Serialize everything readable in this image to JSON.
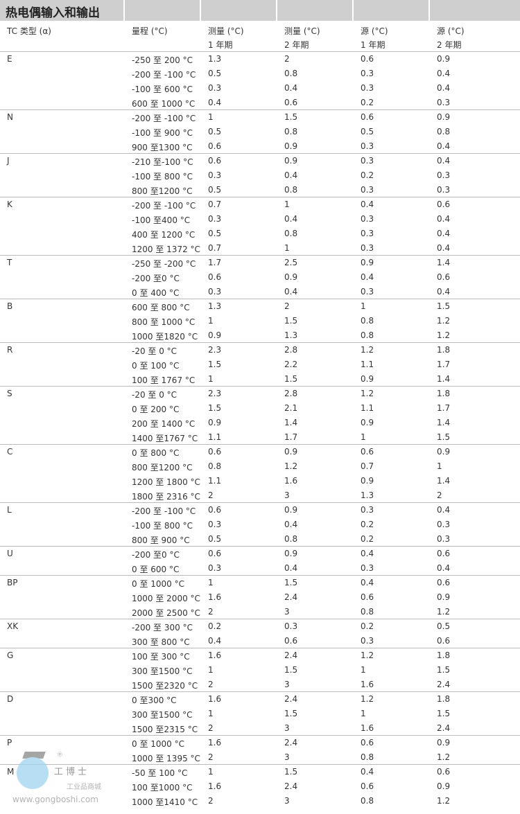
{
  "title": "热电偶输入和输出",
  "headers": [
    {
      "l1": "TC 类型 (α)",
      "l2": ""
    },
    {
      "l1": "量程 (°C)",
      "l2": ""
    },
    {
      "l1": "测量 (°C)",
      "l2": "1 年期"
    },
    {
      "l1": "测量 (°C)",
      "l2": "2 年期"
    },
    {
      "l1": "源 (°C)",
      "l2": "1 年期"
    },
    {
      "l1": "源 (°C)",
      "l2": "2 年期"
    }
  ],
  "groups": [
    {
      "type": "E",
      "rows": [
        [
          "-250 至 200 °C",
          "1.3",
          "2",
          "0.6",
          "0.9"
        ],
        [
          "-200 至 -100 °C",
          "0.5",
          "0.8",
          "0.3",
          "0.4"
        ],
        [
          "-100 至 600 °C",
          "0.3",
          "0.4",
          "0.3",
          "0.4"
        ],
        [
          "600 至 1000 °C",
          "0.4",
          "0.6",
          "0.2",
          "0.3"
        ]
      ]
    },
    {
      "type": "N",
      "rows": [
        [
          "-200 至 -100 °C",
          "1",
          "1.5",
          "0.6",
          "0.9"
        ],
        [
          "-100 至 900 °C",
          "0.5",
          "0.8",
          "0.5",
          "0.8"
        ],
        [
          "900 至1300 °C",
          "0.6",
          "0.9",
          "0.3",
          "0.4"
        ]
      ]
    },
    {
      "type": "J",
      "rows": [
        [
          "-210 至-100 °C",
          "0.6",
          "0.9",
          "0.3",
          "0.4"
        ],
        [
          "-100 至 800 °C",
          "0.3",
          "0.4",
          "0.2",
          "0.3"
        ],
        [
          "800 至1200 °C",
          "0.5",
          "0.8",
          "0.3",
          "0.3"
        ]
      ]
    },
    {
      "type": "K",
      "rows": [
        [
          "-200 至 -100 °C",
          "0.7",
          "1",
          "0.4",
          "0.6"
        ],
        [
          "-100 至400 °C",
          "0.3",
          "0.4",
          "0.3",
          "0.4"
        ],
        [
          "400 至 1200 °C",
          "0.5",
          "0.8",
          "0.3",
          "0.4"
        ],
        [
          "1200 至 1372 °C",
          "0.7",
          "1",
          "0.3",
          "0.4"
        ]
      ]
    },
    {
      "type": "T",
      "rows": [
        [
          "-250 至 -200 °C",
          "1.7",
          "2.5",
          "0.9",
          "1.4"
        ],
        [
          "-200 至0 °C",
          "0.6",
          "0.9",
          "0.4",
          "0.6"
        ],
        [
          "0 至 400 °C",
          "0.3",
          "0.4",
          "0.3",
          "0.4"
        ]
      ]
    },
    {
      "type": "B",
      "rows": [
        [
          "600 至 800 °C",
          "1.3",
          "2",
          "1",
          "1.5"
        ],
        [
          "800 至 1000 °C",
          "1",
          "1.5",
          "0.8",
          "1.2"
        ],
        [
          "1000 至1820 °C",
          "0.9",
          "1.3",
          "0.8",
          "1.2"
        ]
      ]
    },
    {
      "type": "R",
      "rows": [
        [
          "-20 至 0 °C",
          "2.3",
          "2.8",
          "1.2",
          "1.8"
        ],
        [
          "0 至 100 °C",
          "1.5",
          "2.2",
          "1.1",
          "1.7"
        ],
        [
          "100 至 1767 °C",
          "1",
          "1.5",
          "0.9",
          "1.4"
        ]
      ]
    },
    {
      "type": "S",
      "rows": [
        [
          "-20 至 0 °C",
          "2.3",
          "2.8",
          "1.2",
          "1.8"
        ],
        [
          "0 至 200 °C",
          "1.5",
          "2.1",
          "1.1",
          "1.7"
        ],
        [
          "200 至 1400 °C",
          "0.9",
          "1.4",
          "0.9",
          "1.4"
        ],
        [
          "1400 至1767 °C",
          "1.1",
          "1.7",
          "1",
          "1.5"
        ]
      ]
    },
    {
      "type": "C",
      "rows": [
        [
          "0 至 800 °C",
          "0.6",
          "0.9",
          "0.6",
          "0.9"
        ],
        [
          "800 至1200 °C",
          "0.8",
          "1.2",
          "0.7",
          "1"
        ],
        [
          "1200 至 1800 °C",
          "1.1",
          "1.6",
          "0.9",
          "1.4"
        ],
        [
          "1800 至 2316 °C",
          "2",
          "3",
          "1.3",
          "2"
        ]
      ]
    },
    {
      "type": "L",
      "rows": [
        [
          "-200 至 -100 °C",
          "0.6",
          "0.9",
          "0.3",
          "0.4"
        ],
        [
          "-100 至 800 °C",
          "0.3",
          "0.4",
          "0.2",
          "0.3"
        ],
        [
          "800 至 900 °C",
          "0.5",
          "0.8",
          "0.2",
          "0.3"
        ]
      ]
    },
    {
      "type": "U",
      "rows": [
        [
          "-200 至0 °C",
          "0.6",
          "0.9",
          "0.4",
          "0.6"
        ],
        [
          "0 至 600 °C",
          "0.3",
          "0.4",
          "0.3",
          "0.4"
        ]
      ]
    },
    {
      "type": "BP",
      "rows": [
        [
          "0 至 1000 °C",
          "1",
          "1.5",
          "0.4",
          "0.6"
        ],
        [
          "1000 至 2000 °C",
          "1.6",
          "2.4",
          "0.6",
          "0.9"
        ],
        [
          "2000 至 2500 °C",
          "2",
          "3",
          "0.8",
          "1.2"
        ]
      ]
    },
    {
      "type": "XK",
      "rows": [
        [
          "-200 至 300 °C",
          "0.2",
          "0.3",
          "0.2",
          "0.5"
        ],
        [
          "300 至 800 °C",
          "0.4",
          "0.6",
          "0.3",
          "0.6"
        ]
      ]
    },
    {
      "type": "G",
      "rows": [
        [
          "100 至 300 °C",
          "1.6",
          "2.4",
          "1.2",
          "1.8"
        ],
        [
          "300 至1500 °C",
          "1",
          "1.5",
          "1",
          "1.5"
        ],
        [
          "1500 至2320 °C",
          "2",
          "3",
          "1.6",
          "2.4"
        ]
      ]
    },
    {
      "type": "D",
      "rows": [
        [
          "0 至300 °C",
          "1.6",
          "2.4",
          "1.2",
          "1.8"
        ],
        [
          "300 至1500 °C",
          "1",
          "1.5",
          "1",
          "1.5"
        ],
        [
          "1500 至2315 °C",
          "2",
          "3",
          "1.6",
          "2.4"
        ]
      ]
    },
    {
      "type": "P",
      "rows": [
        [
          "0 至 1000 °C",
          "1.6",
          "2.4",
          "0.6",
          "0.9"
        ],
        [
          "1000 至 1395 °C",
          "2",
          "3",
          "0.8",
          "1.2"
        ]
      ]
    },
    {
      "type": "M",
      "rows": [
        [
          "-50 至 100 °C",
          "1",
          "1.5",
          "0.4",
          "0.6"
        ],
        [
          "100 至1000 °C",
          "1.6",
          "2.4",
          "0.6",
          "0.9"
        ],
        [
          "1000 至1410 °C",
          "2",
          "3",
          "0.8",
          "1.2"
        ]
      ]
    }
  ],
  "watermark": {
    "brand": "工博士",
    "tagline": "工业品商城",
    "url": "www.gongboshi.com",
    "reg": "®"
  }
}
